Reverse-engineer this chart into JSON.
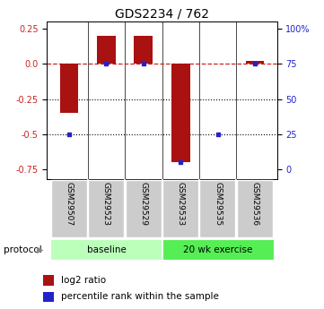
{
  "title": "GDS2234 / 762",
  "samples": [
    "GSM29507",
    "GSM29523",
    "GSM29529",
    "GSM29533",
    "GSM29535",
    "GSM29536"
  ],
  "log2_ratios": [
    -0.35,
    0.2,
    0.2,
    -0.7,
    0.0,
    0.02
  ],
  "percentile_ranks": [
    25,
    75,
    75,
    5,
    25,
    75
  ],
  "groups": [
    {
      "label": "baseline",
      "n": 3,
      "color": "#bbffbb"
    },
    {
      "label": "20 wk exercise",
      "n": 3,
      "color": "#55ee55"
    }
  ],
  "ylim": [
    -0.82,
    0.3
  ],
  "yticks_left": [
    0.25,
    0.0,
    -0.25,
    -0.5,
    -0.75
  ],
  "yticks_right_vals": [
    100,
    75,
    50,
    25,
    0
  ],
  "bar_color": "#aa1111",
  "dot_color": "#2222cc",
  "bar_width": 0.5,
  "legend_items": [
    "log2 ratio",
    "percentile rank within the sample"
  ],
  "protocol_label": "protocol",
  "background_color": "#ffffff",
  "title_fontsize": 10,
  "axis_fontsize": 7,
  "label_fontsize": 6.5
}
